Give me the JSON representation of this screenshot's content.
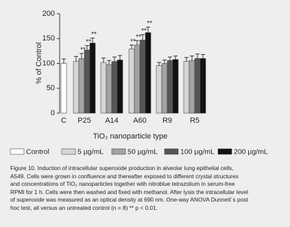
{
  "chart_data": {
    "type": "bar",
    "y_label": "% of Control",
    "x_label": "TiO₂ nanoparticle type",
    "categories": [
      "C",
      "P25",
      "A14",
      "A60",
      "R9",
      "R5"
    ],
    "ylim": [
      0,
      200
    ],
    "yticks": [
      0,
      50,
      100,
      150,
      200
    ],
    "series": [
      {
        "name": "Control",
        "color": "#ffffff",
        "values": [
          100,
          null,
          null,
          null,
          null,
          null
        ],
        "errors": [
          9,
          null,
          null,
          null,
          null,
          null
        ],
        "labels": [
          null,
          null,
          null,
          null,
          null,
          null
        ]
      },
      {
        "name": "5 µg/mL",
        "color": "#d6d6d6",
        "values": [
          null,
          104,
          102,
          129,
          96,
          104
        ],
        "errors": [
          null,
          10,
          9,
          8,
          6,
          8
        ],
        "labels": [
          null,
          null,
          null,
          "**",
          null,
          null
        ]
      },
      {
        "name": "50 µg/mL",
        "color": "#a3a3a3",
        "values": [
          null,
          110,
          98,
          137,
          100,
          106
        ],
        "errors": [
          null,
          10,
          8,
          9,
          7,
          9
        ],
        "labels": [
          null,
          "**",
          null,
          "**",
          null,
          null
        ]
      },
      {
        "name": "100 µg/mL",
        "color": "#555555",
        "values": [
          null,
          127,
          104,
          147,
          106,
          110
        ],
        "errors": [
          null,
          9,
          9,
          11,
          7,
          9
        ],
        "labels": [
          null,
          "**",
          null,
          "**",
          null,
          null
        ]
      },
      {
        "name": "200 µg/mL",
        "color": "#111111",
        "values": [
          null,
          141,
          107,
          162,
          108,
          110
        ],
        "errors": [
          null,
          10,
          9,
          11,
          7,
          8
        ],
        "labels": [
          null,
          "**",
          null,
          "**",
          null,
          null
        ]
      }
    ]
  },
  "caption": {
    "lines": [
      "Figure 10. Induction of intracellular superoxide production in alveolar lung epithelial cells,",
      "A549. Cells were grown in confluence and thereafter exposed to different crystal structures",
      "and concentrations of TiO₂ nanoparticles together with nitroblue tetrazolium in serum-free",
      "RPMI for 1 h. Cells were then washed and fixed with methanol. After lysis the intracellular level",
      "of superoxide was measured as an optical density at 690 nm. One-way ANOVA Dunnett´s post",
      "hoc test, all versus an untreated control (n = 8) ** p < 0.01."
    ]
  }
}
